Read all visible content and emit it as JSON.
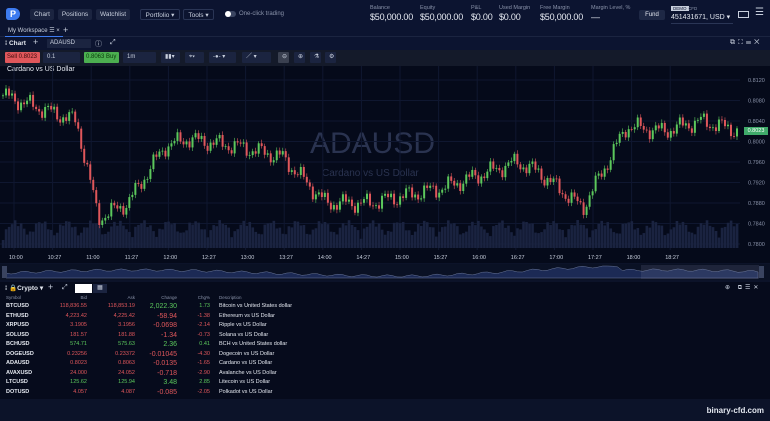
{
  "top": {
    "logo": "P",
    "nav": [
      "Chart",
      "Positions",
      "Watchlist"
    ],
    "menus": [
      "Portfolio ▾",
      "Tools ▾"
    ],
    "one_click": "One-click trading",
    "stats": [
      {
        "label": "Balance",
        "value": "$50,000.00"
      },
      {
        "label": "Equity",
        "value": "$50,000.00"
      },
      {
        "label": "P&L",
        "value": "$0.00"
      },
      {
        "label": "Used Margin",
        "value": "$0.00"
      },
      {
        "label": "Free Margin",
        "value": "$50,000.00"
      },
      {
        "label": "Margin Level, %",
        "value": "—"
      }
    ],
    "fund": "Fund",
    "demo": "DEMO",
    "cfd": "CFD",
    "account": "451431671, USD ▾"
  },
  "workspace": {
    "tab": "My Workspace"
  },
  "chart_panel": {
    "title": "Chart",
    "symbol": "ADAUSD",
    "sell": "Sell 0.8023",
    "qty": "0.1",
    "buy": "0.8063 Buy",
    "interval": "1m",
    "subtitle": "Cardano vs US Dollar",
    "watermark_symbol": "ADAUSD",
    "watermark_desc": "Cardano vs US Dollar",
    "last_price": "0.8023",
    "colors": {
      "up": "#5cc85c",
      "down": "#e0575b",
      "sell_bg": "#e0575b",
      "buy_bg": "#4caf50"
    },
    "y_ticks": [
      "0.8120",
      "0.8080",
      "0.8040",
      "0.8000",
      "0.7960",
      "0.7920",
      "0.7880",
      "0.7840",
      "0.7800"
    ],
    "x_ticks": [
      "10:00",
      "10:27",
      "11:00",
      "11:27",
      "12:00",
      "12:27",
      "13:00",
      "13:27",
      "14:00",
      "14:27",
      "15:00",
      "15:27",
      "16:00",
      "16:27",
      "17:00",
      "17:27",
      "18:00",
      "18:27"
    ],
    "price_path": [
      [
        0,
        0.809
      ],
      [
        0.1,
        0.804
      ],
      [
        0.13,
        0.785
      ],
      [
        0.17,
        0.788
      ],
      [
        0.22,
        0.799
      ],
      [
        0.25,
        0.8005
      ],
      [
        0.32,
        0.799
      ],
      [
        0.38,
        0.797
      ],
      [
        0.44,
        0.788
      ],
      [
        0.5,
        0.788
      ],
      [
        0.6,
        0.791
      ],
      [
        0.7,
        0.796
      ],
      [
        0.73,
        0.794
      ],
      [
        0.79,
        0.787
      ],
      [
        0.85,
        0.803
      ],
      [
        0.9,
        0.802
      ],
      [
        0.95,
        0.804
      ],
      [
        1,
        0.8022
      ]
    ]
  },
  "watchlist": {
    "name": "Crypto",
    "columns": [
      "Symbol",
      "Bid",
      "Ask",
      "Change",
      "Chg%",
      "Description"
    ],
    "rows": [
      [
        "BTCUSD",
        "118,836.55",
        "118,853.19",
        "2,022.30",
        "1.73",
        "Bitcoin vs United States dollar",
        "up"
      ],
      [
        "ETHUSD",
        "4,223.42",
        "4,225.42",
        "-58.94",
        "-1.38",
        "Ethereum vs US Dollar",
        "down"
      ],
      [
        "XRPUSD",
        "3.1905",
        "3.1956",
        "-0.0698",
        "-2.14",
        "Ripple vs US Dollar",
        "down"
      ],
      [
        "SOLUSD",
        "181.57",
        "181.88",
        "-1.34",
        "-0.73",
        "Solana vs US Dollar",
        "down"
      ],
      [
        "BCHUSD",
        "574.71",
        "575.63",
        "2.36",
        "0.41",
        "BCH vs United States dollar",
        "up"
      ],
      [
        "DOGEUSD",
        "0.23256",
        "0.23372",
        "-0.01045",
        "-4.30",
        "Dogecoin vs US Dollar",
        "down"
      ],
      [
        "ADAUSD",
        "0.8023",
        "0.8063",
        "-0.0135",
        "-1.65",
        "Cardano vs US Dollar",
        "down"
      ],
      [
        "AVAXUSD",
        "24.000",
        "24.052",
        "-0.718",
        "-2.90",
        "Avalanche vs US Dollar",
        "down"
      ],
      [
        "LTCUSD",
        "125.62",
        "125.94",
        "3.48",
        "2.85",
        "Litecoin vs US Dollar",
        "up"
      ],
      [
        "DOTUSD",
        "4.057",
        "4.087",
        "-0.085",
        "-2.05",
        "Polkadot vs US Dollar",
        "down"
      ]
    ]
  },
  "footer": {
    "site": "binary-cfd.com"
  }
}
